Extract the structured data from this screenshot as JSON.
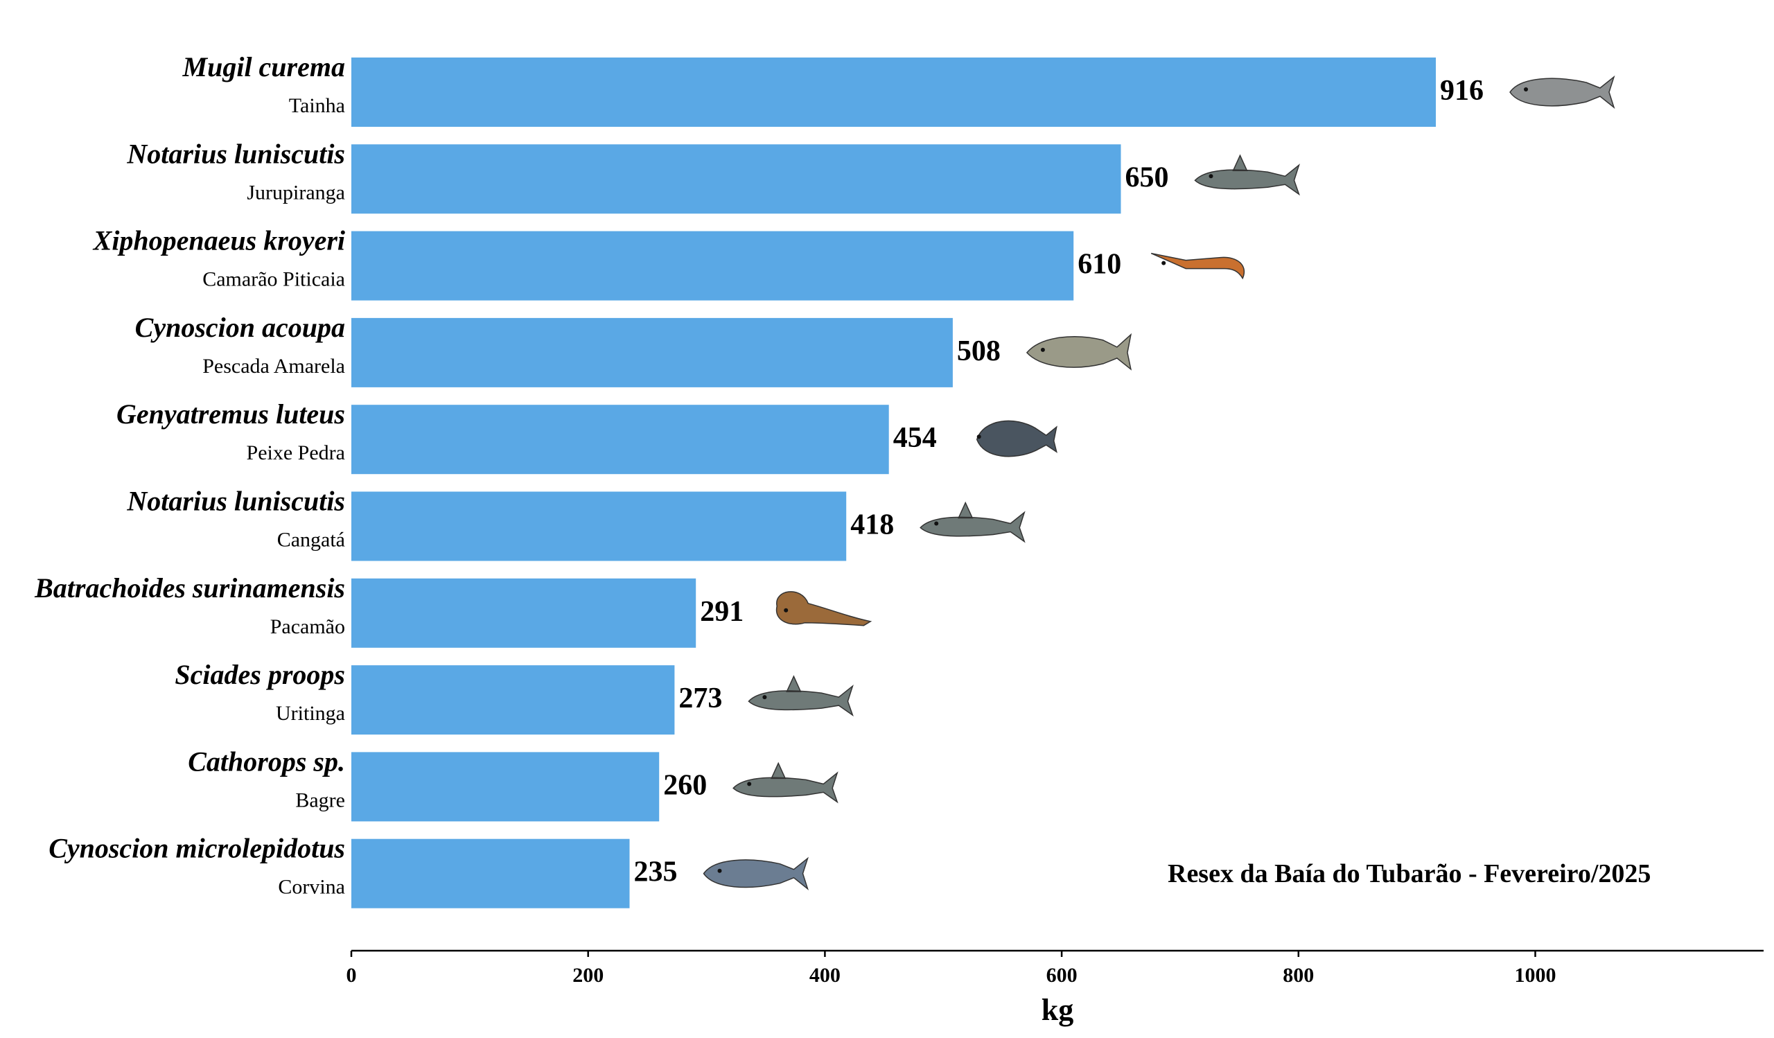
{
  "chart_data": {
    "type": "bar",
    "orientation": "horizontal",
    "categories": [
      {
        "scientific": "Mugil curema",
        "common": "Tainha",
        "icon": "mullet-fish-icon"
      },
      {
        "scientific": "Notarius luniscutis",
        "common": "Jurupiranga",
        "icon": "catfish-icon"
      },
      {
        "scientific": "Xiphopenaeus kroyeri",
        "common": "Camarão Piticaia",
        "icon": "shrimp-icon"
      },
      {
        "scientific": "Cynoscion acoupa",
        "common": "Pescada Amarela",
        "icon": "weakfish-icon"
      },
      {
        "scientific": "Genyatremus luteus",
        "common": "Peixe Pedra",
        "icon": "grunt-fish-icon"
      },
      {
        "scientific": "Notarius luniscutis",
        "common": "Cangatá",
        "icon": "catfish-icon"
      },
      {
        "scientific": "Batrachoides surinamensis",
        "common": "Pacamão",
        "icon": "toadfish-icon"
      },
      {
        "scientific": "Sciades proops",
        "common": "Uritinga",
        "icon": "catfish-icon"
      },
      {
        "scientific": "Cathorops sp.",
        "common": "Bagre",
        "icon": "catfish-icon"
      },
      {
        "scientific": "Cynoscion microlepidotus",
        "common": "Corvina",
        "icon": "croaker-fish-icon"
      }
    ],
    "values": [
      916,
      650,
      610,
      508,
      454,
      418,
      291,
      273,
      260,
      235
    ],
    "xlabel": "kg",
    "ylabel": "",
    "xlim": [
      0,
      1190
    ],
    "xticks": [
      0,
      200,
      400,
      600,
      800,
      1000
    ],
    "annotation": "Resex da Baía do Tubarão - Fevereiro/2025",
    "grid": false,
    "colors": {
      "bar": "#5aa8e5",
      "text": "#000000",
      "axis": "#000000"
    }
  }
}
